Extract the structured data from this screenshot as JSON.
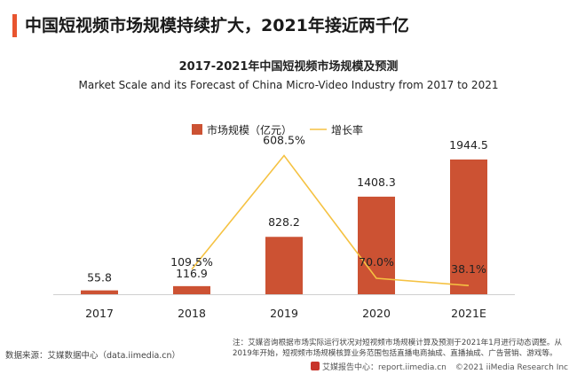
{
  "header": {
    "title": "中国短视频市场规模持续扩大，2021年接近两千亿",
    "accent_color": "#e8542f"
  },
  "chart_data": {
    "type": "bar",
    "title": "2017-2021年中国短视频市场规模及预测",
    "subtitle": "Market Scale and its Forecast of China Micro-Video Industry from 2017 to 2021",
    "categories": [
      "2017",
      "2018",
      "2019",
      "2020",
      "2021E"
    ],
    "series": [
      {
        "name": "市场规模（亿元）",
        "type": "bar",
        "color": "#cc5233",
        "values": [
          55.8,
          116.9,
          828.2,
          1408.3,
          1944.5
        ],
        "labels": [
          "55.8",
          "116.9",
          "828.2",
          "1408.3",
          "1944.5"
        ]
      },
      {
        "name": "增长率",
        "type": "line",
        "color": "#f5c242",
        "values": [
          null,
          109.5,
          608.5,
          70.0,
          38.1
        ],
        "labels": [
          "",
          "109.5%",
          "608.5%",
          "70.0%",
          "38.1%"
        ]
      }
    ],
    "ylim": [
      0,
      2200
    ],
    "y2lim": [
      0,
      700
    ],
    "legend": "top-center",
    "grid": false
  },
  "footer": {
    "source": "数据来源：艾媒数据中心（data.iimedia.cn）",
    "note": "注：艾媒咨询根据市场实际运行状况对短视频市场规模计算及预测于2021年1月进行动态调整。从2019年开始，短视频市场规模核算业务范围包括直播电商抽成、直播抽成、广告营销、游戏等。",
    "brand": "艾媒报告中心：report.iimedia.cn",
    "copyright": "©2021  iiMedia Research  Inc"
  }
}
